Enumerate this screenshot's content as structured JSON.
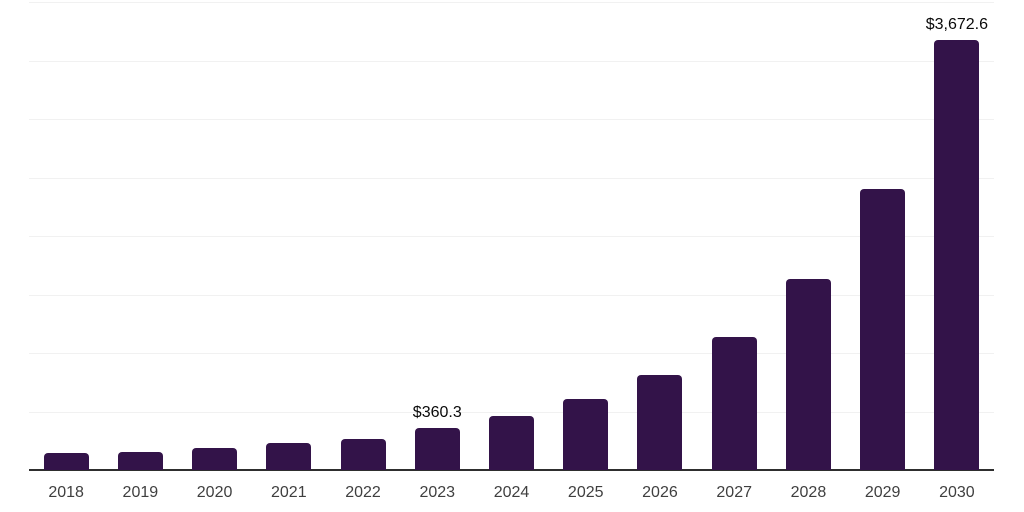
{
  "chart": {
    "background": "#ffffff",
    "bar_color": "#331349",
    "axis_color": "#2e2e2e",
    "gridline_color": "#f1f1f1",
    "tick_label_color": "#3f3f3f",
    "value_label_color": "#0a0a0a"
  },
  "chart_data": {
    "type": "bar",
    "categories": [
      "2018",
      "2019",
      "2020",
      "2021",
      "2022",
      "2023",
      "2024",
      "2025",
      "2026",
      "2027",
      "2028",
      "2029",
      "2030"
    ],
    "values": [
      145,
      158,
      184,
      230,
      265,
      360.3,
      465,
      605,
      815,
      1140,
      1635,
      2405,
      3672.6
    ],
    "annotations": [
      {
        "category": "2023",
        "text": "$360.3"
      },
      {
        "category": "2030",
        "text": "$3,672.6"
      }
    ],
    "title": "",
    "xlabel": "",
    "ylabel": "",
    "ylim": [
      0,
      4000
    ],
    "grid_step": 500,
    "grid": "horizontal-only",
    "y_tick_labels_visible": false,
    "legend": "none"
  }
}
